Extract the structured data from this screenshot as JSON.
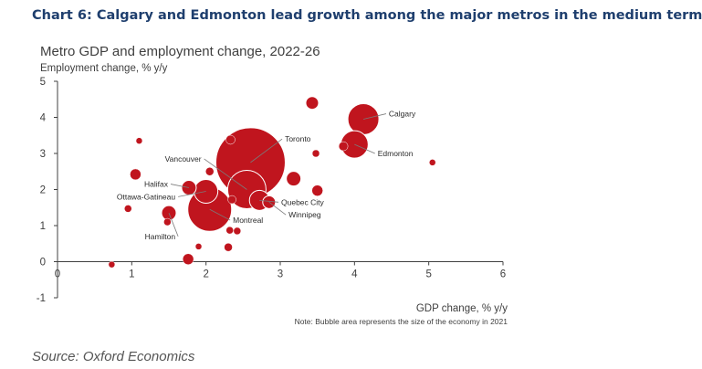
{
  "header": {
    "title": "Chart 6: Calgary and Edmonton lead growth among the major metros in the medium term"
  },
  "source": "Source: Oxford Economics",
  "colors": {
    "bubble": "#c0151e",
    "bubble_stroke": "#ffffff",
    "axis": "#404040",
    "header": "#1f3f6e"
  },
  "chart_data": {
    "type": "scatter",
    "title": "Metro GDP and employment change, 2022-26",
    "ylabel": "Employment change, % y/y",
    "xlabel": "GDP change, % y/y",
    "note": "Note: Bubble area represents the size of the economy in 2021",
    "xlim": [
      0,
      6
    ],
    "ylim": [
      -1,
      5
    ],
    "xticks": [
      0,
      1,
      2,
      3,
      4,
      5,
      6
    ],
    "yticks": [
      -1,
      0,
      1,
      2,
      3,
      4,
      5
    ],
    "grid": false,
    "points": [
      {
        "x": 2.6,
        "y": 2.75,
        "r": 38,
        "label": "Toronto",
        "lx": 3.05,
        "ly": 3.4,
        "anchor": "start"
      },
      {
        "x": 2.05,
        "y": 1.45,
        "r": 24,
        "label": "Montreal",
        "lx": 2.35,
        "ly": 1.15,
        "anchor": "start"
      },
      {
        "x": 2.55,
        "y": 2.0,
        "r": 21,
        "label": "Vancouver",
        "lx": 1.95,
        "ly": 2.85,
        "anchor": "end"
      },
      {
        "x": 4.12,
        "y": 3.95,
        "r": 17,
        "label": "Calgary",
        "lx": 4.45,
        "ly": 4.1,
        "anchor": "start"
      },
      {
        "x": 4.0,
        "y": 3.25,
        "r": 15,
        "label": "Edmonton",
        "lx": 4.3,
        "ly": 3.0,
        "anchor": "start"
      },
      {
        "x": 2.72,
        "y": 1.7,
        "r": 11,
        "label": "Quebec City",
        "lx": 3.0,
        "ly": 1.65,
        "anchor": "start"
      },
      {
        "x": 2.85,
        "y": 1.65,
        "r": 7,
        "label": "Winnipeg",
        "lx": 3.1,
        "ly": 1.3,
        "anchor": "start"
      },
      {
        "x": 2.0,
        "y": 1.95,
        "r": 13,
        "label": "Ottawa-Gatineau",
        "lx": 1.6,
        "ly": 1.8,
        "anchor": "end"
      },
      {
        "x": 1.77,
        "y": 2.05,
        "r": 8,
        "label": "Halifax",
        "lx": 1.5,
        "ly": 2.15,
        "anchor": "end"
      },
      {
        "x": 1.5,
        "y": 1.35,
        "r": 8,
        "label": "Hamilton",
        "lx": 1.6,
        "ly": 0.7,
        "anchor": "end"
      },
      {
        "x": 3.43,
        "y": 4.4,
        "r": 7
      },
      {
        "x": 3.18,
        "y": 2.3,
        "r": 8
      },
      {
        "x": 3.5,
        "y": 1.97,
        "r": 6
      },
      {
        "x": 3.85,
        "y": 3.2,
        "r": 5
      },
      {
        "x": 3.48,
        "y": 3.0,
        "r": 4
      },
      {
        "x": 5.05,
        "y": 2.75,
        "r": 3.5
      },
      {
        "x": 1.1,
        "y": 3.35,
        "r": 3.5
      },
      {
        "x": 1.05,
        "y": 2.42,
        "r": 6
      },
      {
        "x": 0.95,
        "y": 1.47,
        "r": 4
      },
      {
        "x": 1.48,
        "y": 1.1,
        "r": 4
      },
      {
        "x": 1.76,
        "y": 0.07,
        "r": 6
      },
      {
        "x": 1.9,
        "y": 0.42,
        "r": 3.5
      },
      {
        "x": 2.3,
        "y": 0.4,
        "r": 4.5
      },
      {
        "x": 2.32,
        "y": 0.87,
        "r": 4
      },
      {
        "x": 2.42,
        "y": 0.85,
        "r": 4
      },
      {
        "x": 2.05,
        "y": 2.5,
        "r": 4.5
      },
      {
        "x": 2.33,
        "y": 3.38,
        "r": 5
      },
      {
        "x": 0.73,
        "y": -0.08,
        "r": 3.5
      },
      {
        "x": 2.35,
        "y": 1.72,
        "r": 4.5
      }
    ]
  }
}
